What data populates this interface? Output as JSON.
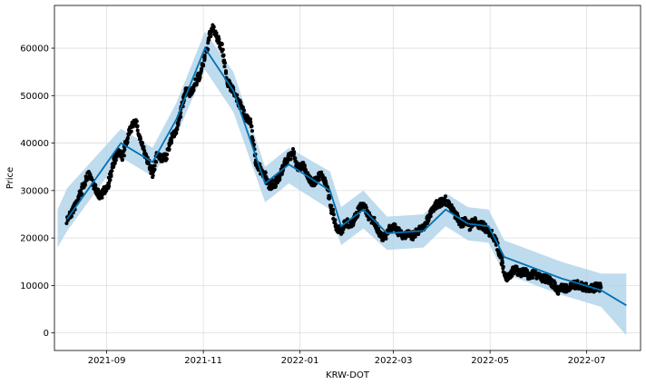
{
  "chart_data": {
    "type": "line",
    "title": "",
    "xlabel": "KRW-DOT",
    "ylabel": "Price",
    "grid": true,
    "x_range": [
      "2021-07-30",
      "2022-08-04"
    ],
    "ylim": [
      -3700,
      69000
    ],
    "y_ticks": [
      0,
      10000,
      20000,
      30000,
      40000,
      50000,
      60000
    ],
    "x_ticks": [
      {
        "date": "2021-09-01",
        "label": "2021-09"
      },
      {
        "date": "2021-11-01",
        "label": "2021-11"
      },
      {
        "date": "2022-01-01",
        "label": "2022-01"
      },
      {
        "date": "2022-03-01",
        "label": "2022-03"
      },
      {
        "date": "2022-05-01",
        "label": "2022-05"
      },
      {
        "date": "2022-07-01",
        "label": "2022-07"
      }
    ],
    "colors": {
      "forecast_line": "#0072b2",
      "uncertainty_band": "#a9cfe8",
      "observed_points": "#000000",
      "grid": "#dddddd"
    },
    "series": [
      {
        "role": "observed",
        "points": [
          [
            "2021-08-07",
            23800
          ],
          [
            "2021-08-10",
            25500
          ],
          [
            "2021-08-13",
            27500
          ],
          [
            "2021-08-16",
            29800
          ],
          [
            "2021-08-19",
            32500
          ],
          [
            "2021-08-21",
            33500
          ],
          [
            "2021-08-24",
            30800
          ],
          [
            "2021-08-27",
            29000
          ],
          [
            "2021-08-30",
            29500
          ],
          [
            "2021-09-02",
            31500
          ],
          [
            "2021-09-05",
            35500
          ],
          [
            "2021-09-08",
            38000
          ],
          [
            "2021-09-11",
            37000
          ],
          [
            "2021-09-14",
            41000
          ],
          [
            "2021-09-17",
            43500
          ],
          [
            "2021-09-19",
            45000
          ],
          [
            "2021-09-22",
            41000
          ],
          [
            "2021-09-25",
            38000
          ],
          [
            "2021-09-28",
            35000
          ],
          [
            "2021-09-30",
            33500
          ],
          [
            "2021-10-03",
            38000
          ],
          [
            "2021-10-06",
            36500
          ],
          [
            "2021-10-09",
            37500
          ],
          [
            "2021-10-12",
            41000
          ],
          [
            "2021-10-15",
            43000
          ],
          [
            "2021-10-18",
            47000
          ],
          [
            "2021-10-21",
            51000
          ],
          [
            "2021-10-24",
            50500
          ],
          [
            "2021-10-27",
            52500
          ],
          [
            "2021-10-30",
            54500
          ],
          [
            "2021-11-02",
            58000
          ],
          [
            "2021-11-05",
            62500
          ],
          [
            "2021-11-07",
            64500
          ],
          [
            "2021-11-10",
            62000
          ],
          [
            "2021-11-13",
            60000
          ],
          [
            "2021-11-16",
            53000
          ],
          [
            "2021-11-19",
            51500
          ],
          [
            "2021-11-22",
            49500
          ],
          [
            "2021-11-25",
            47500
          ],
          [
            "2021-11-28",
            45500
          ],
          [
            "2021-12-01",
            44000
          ],
          [
            "2021-12-04",
            36000
          ],
          [
            "2021-12-07",
            34500
          ],
          [
            "2021-12-10",
            33000
          ],
          [
            "2021-12-13",
            31000
          ],
          [
            "2021-12-16",
            31500
          ],
          [
            "2021-12-19",
            32500
          ],
          [
            "2021-12-22",
            35500
          ],
          [
            "2021-12-25",
            37000
          ],
          [
            "2021-12-28",
            38000
          ],
          [
            "2021-12-31",
            34500
          ],
          [
            "2022-01-03",
            35500
          ],
          [
            "2022-01-06",
            33000
          ],
          [
            "2022-01-09",
            31500
          ],
          [
            "2022-01-12",
            32500
          ],
          [
            "2022-01-15",
            33500
          ],
          [
            "2022-01-18",
            31000
          ],
          [
            "2022-01-21",
            26000
          ],
          [
            "2022-01-24",
            22000
          ],
          [
            "2022-01-27",
            21500
          ],
          [
            "2022-01-30",
            23500
          ],
          [
            "2022-02-02",
            22500
          ],
          [
            "2022-02-05",
            24500
          ],
          [
            "2022-02-08",
            26500
          ],
          [
            "2022-02-11",
            26500
          ],
          [
            "2022-02-14",
            24000
          ],
          [
            "2022-02-17",
            23500
          ],
          [
            "2022-02-20",
            21000
          ],
          [
            "2022-02-23",
            20000
          ],
          [
            "2022-02-26",
            21500
          ],
          [
            "2022-03-01",
            22500
          ],
          [
            "2022-03-04",
            21500
          ],
          [
            "2022-03-07",
            20500
          ],
          [
            "2022-03-10",
            21000
          ],
          [
            "2022-03-13",
            20500
          ],
          [
            "2022-03-16",
            21500
          ],
          [
            "2022-03-19",
            22000
          ],
          [
            "2022-03-22",
            23500
          ],
          [
            "2022-03-25",
            25500
          ],
          [
            "2022-03-28",
            27000
          ],
          [
            "2022-03-31",
            27500
          ],
          [
            "2022-04-03",
            28000
          ],
          [
            "2022-04-06",
            26500
          ],
          [
            "2022-04-09",
            25000
          ],
          [
            "2022-04-12",
            23000
          ],
          [
            "2022-04-15",
            23500
          ],
          [
            "2022-04-18",
            22500
          ],
          [
            "2022-04-21",
            23500
          ],
          [
            "2022-04-24",
            22800
          ],
          [
            "2022-04-27",
            22500
          ],
          [
            "2022-04-30",
            21500
          ],
          [
            "2022-05-03",
            20500
          ],
          [
            "2022-05-06",
            18000
          ],
          [
            "2022-05-09",
            14500
          ],
          [
            "2022-05-11",
            11000
          ],
          [
            "2022-05-14",
            12500
          ],
          [
            "2022-05-17",
            13500
          ],
          [
            "2022-05-20",
            12500
          ],
          [
            "2022-05-23",
            12800
          ],
          [
            "2022-05-26",
            12000
          ],
          [
            "2022-05-29",
            12500
          ],
          [
            "2022-06-01",
            12000
          ],
          [
            "2022-06-04",
            11500
          ],
          [
            "2022-06-07",
            11000
          ],
          [
            "2022-06-10",
            10200
          ],
          [
            "2022-06-13",
            9000
          ],
          [
            "2022-06-16",
            9500
          ],
          [
            "2022-06-19",
            9300
          ],
          [
            "2022-06-22",
            10200
          ],
          [
            "2022-06-25",
            10200
          ],
          [
            "2022-06-28",
            9800
          ],
          [
            "2022-07-01",
            9600
          ],
          [
            "2022-07-04",
            9300
          ],
          [
            "2022-07-07",
            9700
          ],
          [
            "2022-07-10",
            9600
          ]
        ]
      },
      {
        "role": "forecast",
        "points": [
          [
            "2021-08-07",
            24000
          ],
          [
            "2021-09-10",
            40000
          ],
          [
            "2021-09-30",
            36000
          ],
          [
            "2021-10-15",
            45000
          ],
          [
            "2021-11-02",
            60000
          ],
          [
            "2021-11-20",
            51000
          ],
          [
            "2021-12-10",
            31500
          ],
          [
            "2021-12-25",
            35500
          ],
          [
            "2022-01-20",
            30000
          ],
          [
            "2022-01-27",
            22500
          ],
          [
            "2022-02-10",
            26000
          ],
          [
            "2022-02-25",
            21000
          ],
          [
            "2022-03-20",
            21500
          ],
          [
            "2022-04-03",
            26000
          ],
          [
            "2022-04-17",
            23000
          ],
          [
            "2022-04-30",
            22500
          ],
          [
            "2022-05-10",
            16000
          ],
          [
            "2022-06-15",
            11500
          ],
          [
            "2022-07-10",
            9000
          ],
          [
            "2022-07-26",
            5800
          ]
        ],
        "lower": [
          18000,
          21500,
          37000,
          33000,
          41500,
          55500,
          46500,
          27500,
          31500,
          26000,
          18500,
          22000,
          17500,
          18000,
          22500,
          19500,
          19000,
          12500,
          8000,
          5500,
          -500
        ],
        "upper": [
          26000,
          30500,
          43000,
          39000,
          48500,
          63500,
          55000,
          35000,
          39000,
          34000,
          26500,
          30000,
          24500,
          25000,
          29500,
          26500,
          26000,
          19500,
          15000,
          12500,
          12500
        ],
        "band_dates": [
          "2021-08-01",
          "2021-08-07",
          "2021-09-10",
          "2021-09-30",
          "2021-10-15",
          "2021-11-02",
          "2021-11-20",
          "2021-12-10",
          "2021-12-25",
          "2022-01-20",
          "2022-01-27",
          "2022-02-10",
          "2022-02-25",
          "2022-03-20",
          "2022-04-03",
          "2022-04-17",
          "2022-04-30",
          "2022-05-10",
          "2022-06-15",
          "2022-07-10",
          "2022-07-26"
        ]
      }
    ]
  }
}
